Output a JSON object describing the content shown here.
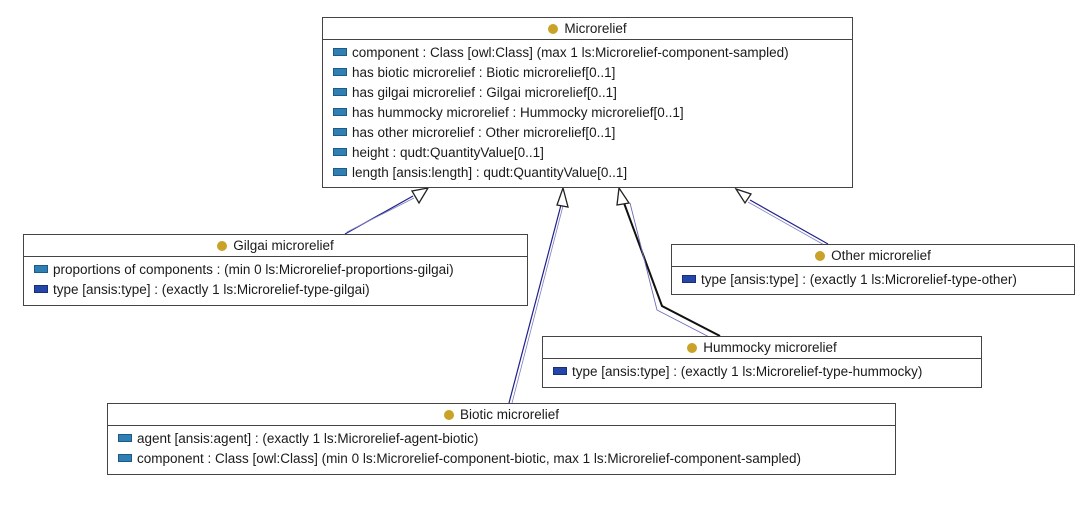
{
  "colors": {
    "class_dot": "#c9a227",
    "object_property_icon": "#2f7fb5",
    "datatype_property_icon": "#2446a8",
    "edge": "#1f1f8c"
  },
  "classes": [
    {
      "id": "microrelief",
      "name": "Microrelief",
      "attributes": [
        {
          "kind": "object",
          "icon": "object-property-icon",
          "text": "component : Class  [owl:Class] (max 1 ls:Microrelief-component-sampled)"
        },
        {
          "kind": "object",
          "icon": "object-property-icon",
          "text": "has biotic microrelief : Biotic microrelief[0..1]"
        },
        {
          "kind": "object",
          "icon": "object-property-icon",
          "text": "has gilgai microrelief : Gilgai microrelief[0..1]"
        },
        {
          "kind": "object",
          "icon": "object-property-icon",
          "text": "has hummocky microrelief : Hummocky microrelief[0..1]"
        },
        {
          "kind": "object",
          "icon": "object-property-icon",
          "text": "has other microrelief : Other microrelief[0..1]"
        },
        {
          "kind": "object",
          "icon": "object-property-icon",
          "text": "height : qudt:QuantityValue[0..1]"
        },
        {
          "kind": "object",
          "icon": "object-property-icon",
          "text": "length  [ansis:length] : qudt:QuantityValue[0..1]"
        }
      ]
    },
    {
      "id": "gilgai",
      "name": "Gilgai microrelief",
      "attributes": [
        {
          "kind": "object",
          "icon": "object-property-icon",
          "text": "proportions of components :  (min 0 ls:Microrelief-proportions-gilgai)"
        },
        {
          "kind": "data",
          "icon": "datatype-property-icon",
          "text": "type  [ansis:type] :  (exactly 1 ls:Microrelief-type-gilgai)"
        }
      ]
    },
    {
      "id": "other",
      "name": "Other microrelief",
      "attributes": [
        {
          "kind": "data",
          "icon": "datatype-property-icon",
          "text": "type  [ansis:type] :  (exactly 1 ls:Microrelief-type-other)"
        }
      ]
    },
    {
      "id": "hummocky",
      "name": "Hummocky microrelief",
      "attributes": [
        {
          "kind": "data",
          "icon": "datatype-property-icon",
          "text": "type  [ansis:type] :  (exactly 1 ls:Microrelief-type-hummocky)"
        }
      ]
    },
    {
      "id": "biotic",
      "name": "Biotic microrelief",
      "attributes": [
        {
          "kind": "object",
          "icon": "object-property-icon",
          "text": "agent  [ansis:agent] :  (exactly 1 ls:Microrelief-agent-biotic)"
        },
        {
          "kind": "object",
          "icon": "object-property-icon",
          "text": "component : Class  [owl:Class] (min 0 ls:Microrelief-component-biotic, max 1 ls:Microrelief-component-sampled)"
        }
      ]
    }
  ],
  "edges": [
    {
      "from": "gilgai",
      "to": "microrelief",
      "type": "generalization"
    },
    {
      "from": "biotic",
      "to": "microrelief",
      "type": "generalization"
    },
    {
      "from": "hummocky",
      "to": "microrelief",
      "type": "generalization"
    },
    {
      "from": "other",
      "to": "microrelief",
      "type": "generalization"
    }
  ]
}
